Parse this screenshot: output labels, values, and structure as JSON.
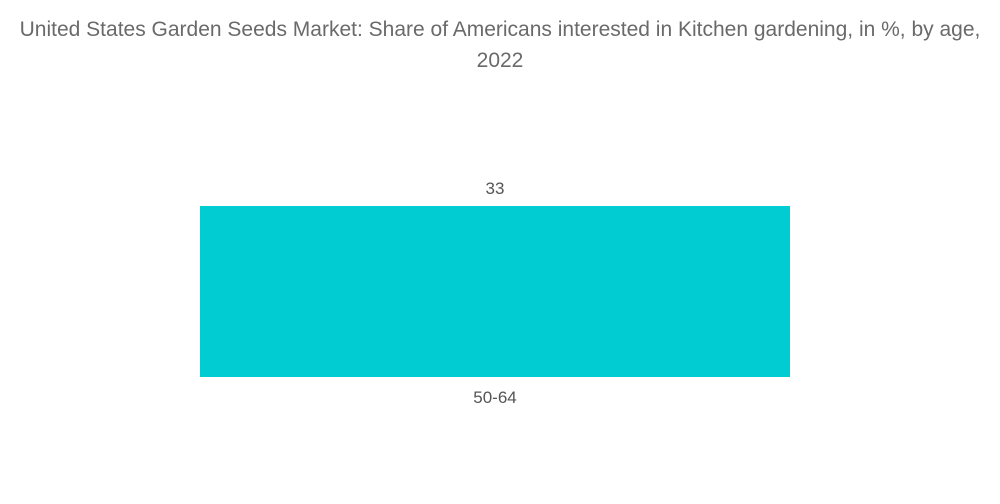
{
  "chart_data": {
    "type": "bar",
    "title": "United States Garden Seeds Market: Share of Americans interested in Kitchen gardening, in %, by age, 2022",
    "categories": [
      "50-64"
    ],
    "values": [
      33
    ],
    "value_labels": [
      "33"
    ],
    "ylim": [
      0,
      33
    ],
    "grid": false,
    "legend": "none",
    "bar_color": "#00ccd1"
  }
}
